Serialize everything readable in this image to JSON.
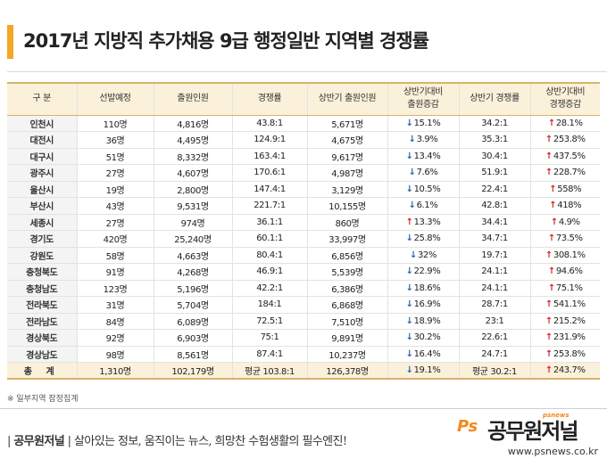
{
  "title": "2017년 지방직 추가채용 9급 행정일반 지역별 경쟁률",
  "table": {
    "headers": [
      "구 분",
      "선발예정",
      "출원인원",
      "경쟁률",
      "상반기 출원인원",
      "상반기대비\n출원증감",
      "상반기 경쟁률",
      "상반기대비\n경쟁증감"
    ],
    "rows": [
      {
        "region": "인천시",
        "planned": "110명",
        "applicants": "4,816명",
        "ratio": "43.8:1",
        "h1_applicants": "5,671명",
        "app_dir": "down",
        "app_change": "15.1%",
        "h1_ratio": "34.2:1",
        "ratio_dir": "up",
        "ratio_change": "28.1%"
      },
      {
        "region": "대전시",
        "planned": "36명",
        "applicants": "4,495명",
        "ratio": "124.9:1",
        "h1_applicants": "4,675명",
        "app_dir": "down",
        "app_change": "3.9%",
        "h1_ratio": "35.3:1",
        "ratio_dir": "up",
        "ratio_change": "253.8%"
      },
      {
        "region": "대구시",
        "planned": "51명",
        "applicants": "8,332명",
        "ratio": "163.4:1",
        "h1_applicants": "9,617명",
        "app_dir": "down",
        "app_change": "13.4%",
        "h1_ratio": "30.4:1",
        "ratio_dir": "up",
        "ratio_change": "437.5%"
      },
      {
        "region": "광주시",
        "planned": "27명",
        "applicants": "4,607명",
        "ratio": "170.6:1",
        "h1_applicants": "4,987명",
        "app_dir": "down",
        "app_change": "7.6%",
        "h1_ratio": "51.9:1",
        "ratio_dir": "up",
        "ratio_change": "228.7%"
      },
      {
        "region": "울산시",
        "planned": "19명",
        "applicants": "2,800명",
        "ratio": "147.4:1",
        "h1_applicants": "3,129명",
        "app_dir": "down",
        "app_change": "10.5%",
        "h1_ratio": "22.4:1",
        "ratio_dir": "up",
        "ratio_change": "558%"
      },
      {
        "region": "부산시",
        "planned": "43명",
        "applicants": "9,531명",
        "ratio": "221.7:1",
        "h1_applicants": "10,155명",
        "app_dir": "down",
        "app_change": "6.1%",
        "h1_ratio": "42.8:1",
        "ratio_dir": "up",
        "ratio_change": "418%"
      },
      {
        "region": "세종시",
        "planned": "27명",
        "applicants": "974명",
        "ratio": "36.1:1",
        "h1_applicants": "860명",
        "app_dir": "up",
        "app_change": "13.3%",
        "h1_ratio": "34.4:1",
        "ratio_dir": "up",
        "ratio_change": "4.9%"
      },
      {
        "region": "경기도",
        "planned": "420명",
        "applicants": "25,240명",
        "ratio": "60.1:1",
        "h1_applicants": "33,997명",
        "app_dir": "down",
        "app_change": "25.8%",
        "h1_ratio": "34.7:1",
        "ratio_dir": "up",
        "ratio_change": "73.5%"
      },
      {
        "region": "강원도",
        "planned": "58명",
        "applicants": "4,663명",
        "ratio": "80.4:1",
        "h1_applicants": "6,856명",
        "app_dir": "down",
        "app_change": "32%",
        "h1_ratio": "19.7:1",
        "ratio_dir": "up",
        "ratio_change": "308.1%"
      },
      {
        "region": "충청북도",
        "planned": "91명",
        "applicants": "4,268명",
        "ratio": "46.9:1",
        "h1_applicants": "5,539명",
        "app_dir": "down",
        "app_change": "22.9%",
        "h1_ratio": "24.1:1",
        "ratio_dir": "up",
        "ratio_change": "94.6%"
      },
      {
        "region": "충청남도",
        "planned": "123명",
        "applicants": "5,196명",
        "ratio": "42.2:1",
        "h1_applicants": "6,386명",
        "app_dir": "down",
        "app_change": "18.6%",
        "h1_ratio": "24.1:1",
        "ratio_dir": "up",
        "ratio_change": "75.1%"
      },
      {
        "region": "전라북도",
        "planned": "31명",
        "applicants": "5,704명",
        "ratio": "184:1",
        "h1_applicants": "6,868명",
        "app_dir": "down",
        "app_change": "16.9%",
        "h1_ratio": "28.7:1",
        "ratio_dir": "up",
        "ratio_change": "541.1%"
      },
      {
        "region": "전라남도",
        "planned": "84명",
        "applicants": "6,089명",
        "ratio": "72.5:1",
        "h1_applicants": "7,510명",
        "app_dir": "down",
        "app_change": "18.9%",
        "h1_ratio": "23:1",
        "ratio_dir": "up",
        "ratio_change": "215.2%"
      },
      {
        "region": "경상북도",
        "planned": "92명",
        "applicants": "6,903명",
        "ratio": "75:1",
        "h1_applicants": "9,891명",
        "app_dir": "down",
        "app_change": "30.2%",
        "h1_ratio": "22.6:1",
        "ratio_dir": "up",
        "ratio_change": "231.9%"
      },
      {
        "region": "경상남도",
        "planned": "98명",
        "applicants": "8,561명",
        "ratio": "87.4:1",
        "h1_applicants": "10,237명",
        "app_dir": "down",
        "app_change": "16.4%",
        "h1_ratio": "24.7:1",
        "ratio_dir": "up",
        "ratio_change": "253.8%"
      }
    ],
    "total": {
      "region": "총 계",
      "planned": "1,310명",
      "applicants": "102,179명",
      "ratio": "평균 103.8:1",
      "h1_applicants": "126,378명",
      "app_dir": "down",
      "app_change": "19.1%",
      "h1_ratio": "평균 30.2:1",
      "ratio_dir": "up",
      "ratio_change": "243.7%"
    }
  },
  "footnote": "※ 일부지역 잠정집계",
  "footer": {
    "brand": "공무원저널",
    "slogan": "살아있는 정보, 움직이는 뉴스, 희망찬 수험생활의 필수엔진!",
    "logo_ps": "Ps",
    "logo_name": "공무원저널",
    "logo_small": "psnews",
    "url": "www.psnews.co.kr"
  },
  "colors": {
    "accent": "#f5a623",
    "down": "#2e63b5",
    "up": "#d9232e",
    "header_bg": "#fbf1da"
  },
  "icons": {
    "down": "arrow-down-icon",
    "up": "arrow-up-icon"
  }
}
